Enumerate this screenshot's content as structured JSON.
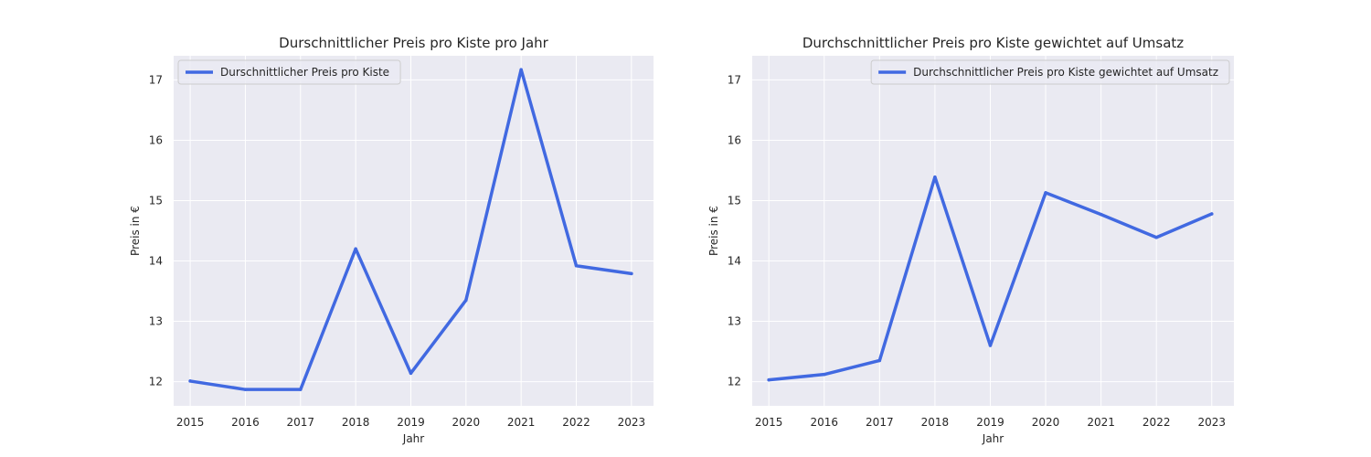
{
  "chart_data": [
    {
      "type": "line",
      "title": "Durschnittlicher Preis pro Kiste pro Jahr",
      "xlabel": "Jahr",
      "ylabel": "Preis in €",
      "x": [
        2015,
        2016,
        2017,
        2018,
        2019,
        2020,
        2021,
        2022,
        2023
      ],
      "xlim": [
        2014.7,
        2023.4
      ],
      "ylim": [
        11.6,
        17.4
      ],
      "yticks": [
        12,
        13,
        14,
        15,
        16,
        17
      ],
      "grid": true,
      "legend_position": "upper-left",
      "series": [
        {
          "name": "Durschnittlicher Preis pro Kiste",
          "color": "#4169e1",
          "values": [
            12.01,
            11.87,
            11.87,
            14.2,
            12.14,
            13.35,
            17.17,
            13.92,
            13.79
          ]
        }
      ]
    },
    {
      "type": "line",
      "title": "Durchschnittlicher Preis pro Kiste gewichtet auf Umsatz",
      "xlabel": "Jahr",
      "ylabel": "Preis in €",
      "x": [
        2015,
        2016,
        2017,
        2018,
        2019,
        2020,
        2021,
        2022,
        2023
      ],
      "xlim": [
        2014.7,
        2023.4
      ],
      "ylim": [
        11.6,
        17.4
      ],
      "yticks": [
        12,
        13,
        14,
        15,
        16,
        17
      ],
      "grid": true,
      "legend_position": "upper-right",
      "series": [
        {
          "name": "Durchschnittlicher Preis pro Kiste gewichtet auf Umsatz",
          "color": "#4169e1",
          "values": [
            12.03,
            12.12,
            12.35,
            15.39,
            12.6,
            15.13,
            14.77,
            14.39,
            14.78
          ]
        }
      ]
    }
  ]
}
